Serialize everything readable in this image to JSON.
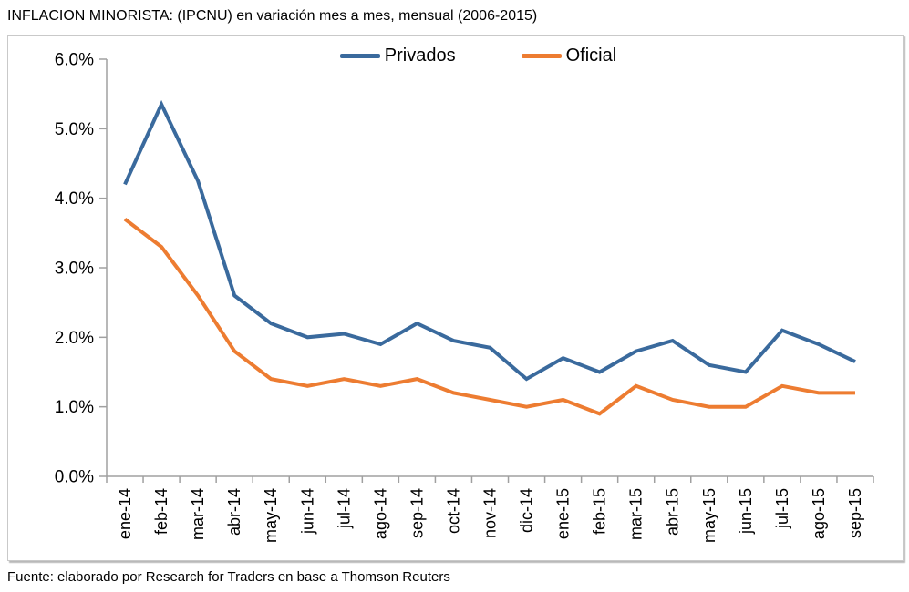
{
  "page": {
    "title": "INFLACION MINORISTA: (IPCNU) en variación mes a mes, mensual (2006-2015)",
    "source": "Fuente: elaborado por Research for Traders en base a Thomson Reuters"
  },
  "chart_data": {
    "type": "line",
    "title": "",
    "xlabel": "",
    "ylabel": "",
    "categories": [
      "ene-14",
      "feb-14",
      "mar-14",
      "abr-14",
      "may-14",
      "jun-14",
      "jul-14",
      "ago-14",
      "sep-14",
      "oct-14",
      "nov-14",
      "dic-14",
      "ene-15",
      "feb-15",
      "mar-15",
      "abr-15",
      "may-15",
      "jun-15",
      "jul-15",
      "ago-15",
      "sep-15"
    ],
    "series": [
      {
        "name": "Privados",
        "color": "#3a6a9d",
        "values": [
          4.2,
          5.35,
          4.25,
          2.6,
          2.2,
          2.0,
          2.05,
          1.9,
          2.2,
          1.95,
          1.85,
          1.4,
          1.7,
          1.5,
          1.8,
          1.95,
          1.6,
          1.5,
          2.1,
          1.9,
          1.65
        ]
      },
      {
        "name": "Oficial",
        "color": "#ed7c31",
        "values": [
          3.7,
          3.3,
          2.6,
          1.8,
          1.4,
          1.3,
          1.4,
          1.3,
          1.4,
          1.2,
          1.1,
          1.0,
          1.1,
          0.9,
          1.3,
          1.1,
          1.0,
          1.0,
          1.3,
          1.2,
          1.2
        ]
      }
    ],
    "ylim": [
      0,
      6
    ],
    "ytick_step": 1,
    "ytick_labels": [
      "0.0%",
      "1.0%",
      "2.0%",
      "3.0%",
      "4.0%",
      "5.0%",
      "6.0%"
    ],
    "grid": false,
    "legend_position": "top-center",
    "axis_color": "#a0a0a0",
    "text_color": "#000000"
  }
}
